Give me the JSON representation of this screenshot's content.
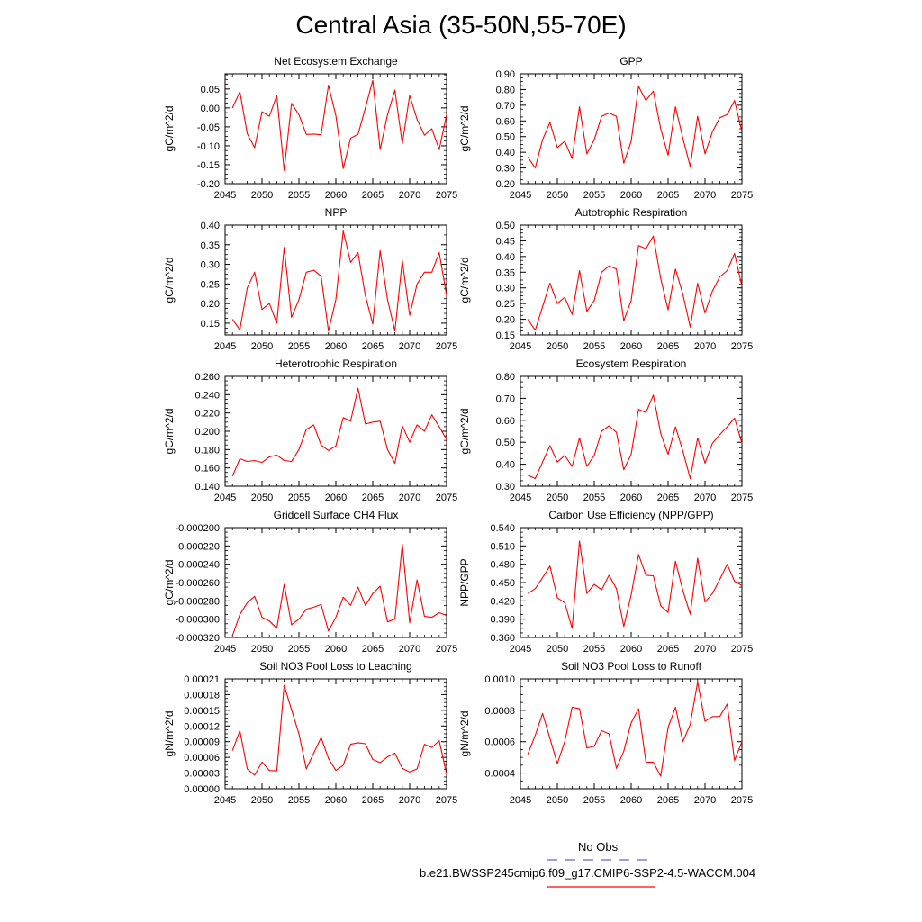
{
  "figure": {
    "title": "Central Asia (35-50N,55-70E)"
  },
  "legend": {
    "obs_label": "No Obs",
    "obs_color": "#6666cc",
    "model_label": "b.e21.BWSSP245cmip6.f09_g17.CMIP6-SSP2-4.5-WACCM.004",
    "model_color": "#ff0000"
  },
  "chart_data": [
    {
      "type": "line",
      "title": "Net Ecosystem Exchange",
      "ylabel": "gC/m^2/d",
      "xlim": [
        2045,
        2075
      ],
      "ylim": [
        -0.2,
        0.09
      ],
      "yticks": [
        -0.2,
        -0.15,
        -0.1,
        -0.05,
        0.0,
        0.05
      ],
      "ytick_labels": [
        "-0.20",
        "-0.15",
        "-0.10",
        "-0.05",
        "0.00",
        "0.05"
      ],
      "xticks": [
        2045,
        2050,
        2055,
        2060,
        2065,
        2070,
        2075
      ],
      "x": [
        2046,
        2047,
        2048,
        2049,
        2050,
        2051,
        2052,
        2053,
        2054,
        2055,
        2056,
        2057,
        2058,
        2059,
        2060,
        2061,
        2062,
        2063,
        2064,
        2065,
        2066,
        2067,
        2068,
        2069,
        2070,
        2071,
        2072,
        2073,
        2074,
        2075
      ],
      "series": [
        {
          "values": [
            0.0,
            0.043,
            -0.068,
            -0.105,
            -0.01,
            -0.022,
            0.033,
            -0.165,
            0.012,
            -0.018,
            -0.07,
            -0.069,
            -0.071,
            0.06,
            -0.02,
            -0.16,
            -0.08,
            -0.07,
            0.0,
            0.073,
            -0.11,
            -0.018,
            0.047,
            -0.095,
            0.033,
            -0.03,
            -0.072,
            -0.055,
            -0.11,
            -0.018
          ],
          "color": "#ff0000"
        }
      ]
    },
    {
      "type": "line",
      "title": "GPP",
      "ylabel": "gC/m^2/d",
      "xlim": [
        2045,
        2075
      ],
      "ylim": [
        0.2,
        0.9
      ],
      "yticks": [
        0.2,
        0.3,
        0.4,
        0.5,
        0.6,
        0.7,
        0.8,
        0.9
      ],
      "ytick_labels": [
        "0.20",
        "0.30",
        "0.40",
        "0.50",
        "0.60",
        "0.70",
        "0.80",
        "0.90"
      ],
      "xticks": [
        2045,
        2050,
        2055,
        2060,
        2065,
        2070,
        2075
      ],
      "x": [
        2046,
        2047,
        2048,
        2049,
        2050,
        2051,
        2052,
        2053,
        2054,
        2055,
        2056,
        2057,
        2058,
        2059,
        2060,
        2061,
        2062,
        2063,
        2064,
        2065,
        2066,
        2067,
        2068,
        2069,
        2070,
        2071,
        2072,
        2073,
        2074,
        2075
      ],
      "series": [
        {
          "values": [
            0.37,
            0.3,
            0.48,
            0.59,
            0.43,
            0.47,
            0.36,
            0.69,
            0.39,
            0.48,
            0.63,
            0.65,
            0.63,
            0.33,
            0.47,
            0.82,
            0.73,
            0.79,
            0.55,
            0.38,
            0.69,
            0.49,
            0.31,
            0.63,
            0.39,
            0.53,
            0.62,
            0.64,
            0.73,
            0.53
          ],
          "color": "#ff0000"
        }
      ]
    },
    {
      "type": "line",
      "title": "NPP",
      "ylabel": "gC/m^2/d",
      "xlim": [
        2045,
        2075
      ],
      "ylim": [
        0.12,
        0.4
      ],
      "yticks": [
        0.15,
        0.2,
        0.25,
        0.3,
        0.35,
        0.4
      ],
      "ytick_labels": [
        "0.15",
        "0.20",
        "0.25",
        "0.30",
        "0.35",
        "0.40"
      ],
      "xticks": [
        2045,
        2050,
        2055,
        2060,
        2065,
        2070,
        2075
      ],
      "x": [
        2046,
        2047,
        2048,
        2049,
        2050,
        2051,
        2052,
        2053,
        2054,
        2055,
        2056,
        2057,
        2058,
        2059,
        2060,
        2061,
        2062,
        2063,
        2064,
        2065,
        2066,
        2067,
        2068,
        2069,
        2070,
        2071,
        2072,
        2073,
        2074,
        2075
      ],
      "series": [
        {
          "values": [
            0.16,
            0.133,
            0.24,
            0.28,
            0.185,
            0.2,
            0.15,
            0.343,
            0.165,
            0.21,
            0.28,
            0.285,
            0.27,
            0.13,
            0.21,
            0.385,
            0.305,
            0.33,
            0.22,
            0.148,
            0.335,
            0.21,
            0.13,
            0.31,
            0.17,
            0.25,
            0.28,
            0.28,
            0.33,
            0.22
          ],
          "color": "#ff0000"
        }
      ]
    },
    {
      "type": "line",
      "title": "Autotrophic Respiration",
      "ylabel": "gC/m^2/d",
      "xlim": [
        2045,
        2075
      ],
      "ylim": [
        0.15,
        0.5
      ],
      "yticks": [
        0.15,
        0.2,
        0.25,
        0.3,
        0.35,
        0.4,
        0.45,
        0.5
      ],
      "ytick_labels": [
        "0.15",
        "0.20",
        "0.25",
        "0.30",
        "0.35",
        "0.40",
        "0.45",
        "0.50"
      ],
      "xticks": [
        2045,
        2050,
        2055,
        2060,
        2065,
        2070,
        2075
      ],
      "x": [
        2046,
        2047,
        2048,
        2049,
        2050,
        2051,
        2052,
        2053,
        2054,
        2055,
        2056,
        2057,
        2058,
        2059,
        2060,
        2061,
        2062,
        2063,
        2064,
        2065,
        2066,
        2067,
        2068,
        2069,
        2070,
        2071,
        2072,
        2073,
        2074,
        2075
      ],
      "series": [
        {
          "values": [
            0.2,
            0.165,
            0.24,
            0.315,
            0.25,
            0.27,
            0.215,
            0.355,
            0.225,
            0.26,
            0.35,
            0.37,
            0.36,
            0.195,
            0.26,
            0.435,
            0.425,
            0.465,
            0.33,
            0.23,
            0.36,
            0.28,
            0.175,
            0.315,
            0.22,
            0.29,
            0.335,
            0.355,
            0.41,
            0.305
          ],
          "color": "#ff0000"
        }
      ]
    },
    {
      "type": "line",
      "title": "Heterotrophic Respiration",
      "ylabel": "gC/m^2/d",
      "xlim": [
        2045,
        2075
      ],
      "ylim": [
        0.14,
        0.26
      ],
      "yticks": [
        0.14,
        0.16,
        0.18,
        0.2,
        0.22,
        0.24,
        0.26
      ],
      "ytick_labels": [
        "0.140",
        "0.160",
        "0.180",
        "0.200",
        "0.220",
        "0.240",
        "0.260"
      ],
      "xticks": [
        2045,
        2050,
        2055,
        2060,
        2065,
        2070,
        2075
      ],
      "x": [
        2046,
        2047,
        2048,
        2049,
        2050,
        2051,
        2052,
        2053,
        2054,
        2055,
        2056,
        2057,
        2058,
        2059,
        2060,
        2061,
        2062,
        2063,
        2064,
        2065,
        2066,
        2067,
        2068,
        2069,
        2070,
        2071,
        2072,
        2073,
        2074,
        2075
      ],
      "series": [
        {
          "values": [
            0.151,
            0.17,
            0.167,
            0.168,
            0.166,
            0.172,
            0.174,
            0.168,
            0.167,
            0.18,
            0.202,
            0.207,
            0.185,
            0.179,
            0.184,
            0.215,
            0.211,
            0.247,
            0.208,
            0.21,
            0.211,
            0.18,
            0.165,
            0.206,
            0.188,
            0.207,
            0.2,
            0.218,
            0.205,
            0.191
          ],
          "color": "#ff0000"
        }
      ]
    },
    {
      "type": "line",
      "title": "Ecosystem Respiration",
      "ylabel": "gC/m^2/d",
      "xlim": [
        2045,
        2075
      ],
      "ylim": [
        0.3,
        0.8
      ],
      "yticks": [
        0.3,
        0.4,
        0.5,
        0.6,
        0.7,
        0.8
      ],
      "ytick_labels": [
        "0.30",
        "0.40",
        "0.50",
        "0.60",
        "0.70",
        "0.80"
      ],
      "xticks": [
        2045,
        2050,
        2055,
        2060,
        2065,
        2070,
        2075
      ],
      "x": [
        2046,
        2047,
        2048,
        2049,
        2050,
        2051,
        2052,
        2053,
        2054,
        2055,
        2056,
        2057,
        2058,
        2059,
        2060,
        2061,
        2062,
        2063,
        2064,
        2065,
        2066,
        2067,
        2068,
        2069,
        2070,
        2071,
        2072,
        2073,
        2074,
        2075
      ],
      "series": [
        {
          "values": [
            0.35,
            0.335,
            0.41,
            0.485,
            0.41,
            0.44,
            0.39,
            0.52,
            0.39,
            0.44,
            0.55,
            0.575,
            0.545,
            0.375,
            0.445,
            0.65,
            0.635,
            0.715,
            0.54,
            0.445,
            0.57,
            0.46,
            0.335,
            0.52,
            0.405,
            0.495,
            0.535,
            0.57,
            0.61,
            0.495
          ],
          "color": "#ff0000"
        }
      ]
    },
    {
      "type": "line",
      "title": "Gridcell Surface CH4 Flux",
      "ylabel": "gC/m^2/d",
      "xlim": [
        2045,
        2075
      ],
      "ylim": [
        -0.00032,
        -0.0002
      ],
      "yticks": [
        -0.00032,
        -0.0003,
        -0.00028,
        -0.00026,
        -0.00024,
        -0.00022,
        -0.0002
      ],
      "ytick_labels": [
        "-0.000320",
        "-0.000300",
        "-0.000280",
        "-0.000260",
        "-0.000240",
        "-0.000220",
        "-0.000200"
      ],
      "xticks": [
        2045,
        2050,
        2055,
        2060,
        2065,
        2070,
        2075
      ],
      "x": [
        2046,
        2047,
        2048,
        2049,
        2050,
        2051,
        2052,
        2053,
        2054,
        2055,
        2056,
        2057,
        2058,
        2059,
        2060,
        2061,
        2062,
        2063,
        2064,
        2065,
        2066,
        2067,
        2068,
        2069,
        2070,
        2071,
        2072,
        2073,
        2074,
        2075
      ],
      "series": [
        {
          "values": [
            -0.000318,
            -0.000295,
            -0.000282,
            -0.000275,
            -0.000298,
            -0.000302,
            -0.00031,
            -0.000262,
            -0.000306,
            -0.0003,
            -0.000289,
            -0.000287,
            -0.000284,
            -0.000313,
            -0.000298,
            -0.000276,
            -0.000285,
            -0.000265,
            -0.000285,
            -0.000272,
            -0.000264,
            -0.000303,
            -0.0003,
            -0.000218,
            -0.000304,
            -0.000257,
            -0.000297,
            -0.000298,
            -0.000293,
            -0.000296
          ],
          "color": "#ff0000"
        }
      ]
    },
    {
      "type": "line",
      "title": "Carbon Use Efficiency (NPP/GPP)",
      "ylabel": "NPP/GPP",
      "xlim": [
        2045,
        2075
      ],
      "ylim": [
        0.36,
        0.54
      ],
      "yticks": [
        0.36,
        0.39,
        0.42,
        0.45,
        0.48,
        0.51,
        0.54
      ],
      "ytick_labels": [
        "0.360",
        "0.390",
        "0.420",
        "0.450",
        "0.480",
        "0.510",
        "0.540"
      ],
      "xticks": [
        2045,
        2050,
        2055,
        2060,
        2065,
        2070,
        2075
      ],
      "x": [
        2046,
        2047,
        2048,
        2049,
        2050,
        2051,
        2052,
        2053,
        2054,
        2055,
        2056,
        2057,
        2058,
        2059,
        2060,
        2061,
        2062,
        2063,
        2064,
        2065,
        2066,
        2067,
        2068,
        2069,
        2070,
        2071,
        2072,
        2073,
        2074,
        2075
      ],
      "series": [
        {
          "values": [
            0.432,
            0.44,
            0.458,
            0.477,
            0.425,
            0.417,
            0.375,
            0.518,
            0.432,
            0.447,
            0.438,
            0.462,
            0.44,
            0.378,
            0.43,
            0.496,
            0.462,
            0.461,
            0.412,
            0.401,
            0.485,
            0.437,
            0.398,
            0.49,
            0.418,
            0.432,
            0.455,
            0.48,
            0.452,
            0.445
          ],
          "color": "#ff0000"
        }
      ]
    },
    {
      "type": "line",
      "title": "Soil NO3 Pool Loss to Leaching",
      "ylabel": "gN/m^2/d",
      "xlim": [
        2045,
        2075
      ],
      "ylim": [
        0.0,
        0.00021
      ],
      "yticks": [
        0.0,
        3e-05,
        6e-05,
        9e-05,
        0.00012,
        0.00015,
        0.00018,
        0.00021
      ],
      "ytick_labels": [
        "0.00000",
        "0.00003",
        "0.00006",
        "0.00009",
        "0.00012",
        "0.00015",
        "0.00018",
        "0.00021"
      ],
      "xticks": [
        2045,
        2050,
        2055,
        2060,
        2065,
        2070,
        2075
      ],
      "x": [
        2046,
        2047,
        2048,
        2049,
        2050,
        2051,
        2052,
        2053,
        2054,
        2055,
        2056,
        2057,
        2058,
        2059,
        2060,
        2061,
        2062,
        2063,
        2064,
        2065,
        2066,
        2067,
        2068,
        2069,
        2070,
        2071,
        2072,
        2073,
        2074,
        2075
      ],
      "series": [
        {
          "values": [
            7.3e-05,
            0.000111,
            3.8e-05,
            2.6e-05,
            5.1e-05,
            3.5e-05,
            3.4e-05,
            0.000198,
            0.000151,
            0.000105,
            3.8e-05,
            6.8e-05,
            9.8e-05,
            5.8e-05,
            3.5e-05,
            4.5e-05,
            8.5e-05,
            8.8e-05,
            8.6e-05,
            5.6e-05,
            5e-05,
            6.1e-05,
            6.8e-05,
            3.9e-05,
            3.2e-05,
            3.8e-05,
            8.5e-05,
            7.9e-05,
            9.2e-05,
            2.8e-05
          ],
          "color": "#ff0000"
        }
      ]
    },
    {
      "type": "line",
      "title": "Soil NO3 Pool Loss to Runoff",
      "ylabel": "gN/m^2/d",
      "xlim": [
        2045,
        2075
      ],
      "ylim": [
        0.0003,
        0.001
      ],
      "yticks": [
        0.0004,
        0.0006,
        0.0008,
        0.001
      ],
      "ytick_labels": [
        "0.0004",
        "0.0006",
        "0.0008",
        "0.0010"
      ],
      "xticks": [
        2045,
        2050,
        2055,
        2060,
        2065,
        2070,
        2075
      ],
      "x": [
        2046,
        2047,
        2048,
        2049,
        2050,
        2051,
        2052,
        2053,
        2054,
        2055,
        2056,
        2057,
        2058,
        2059,
        2060,
        2061,
        2062,
        2063,
        2064,
        2065,
        2066,
        2067,
        2068,
        2069,
        2070,
        2071,
        2072,
        2073,
        2074,
        2075
      ],
      "series": [
        {
          "values": [
            0.00052,
            0.00064,
            0.00078,
            0.00062,
            0.00046,
            0.0006,
            0.00082,
            0.00081,
            0.00056,
            0.00057,
            0.00067,
            0.00065,
            0.00043,
            0.00054,
            0.00072,
            0.00081,
            0.00047,
            0.00047,
            0.00038,
            0.00069,
            0.00082,
            0.0006,
            0.00071,
            0.00098,
            0.00073,
            0.00076,
            0.00076,
            0.00084,
            0.00048,
            0.0006
          ],
          "color": "#ff0000"
        }
      ]
    }
  ]
}
